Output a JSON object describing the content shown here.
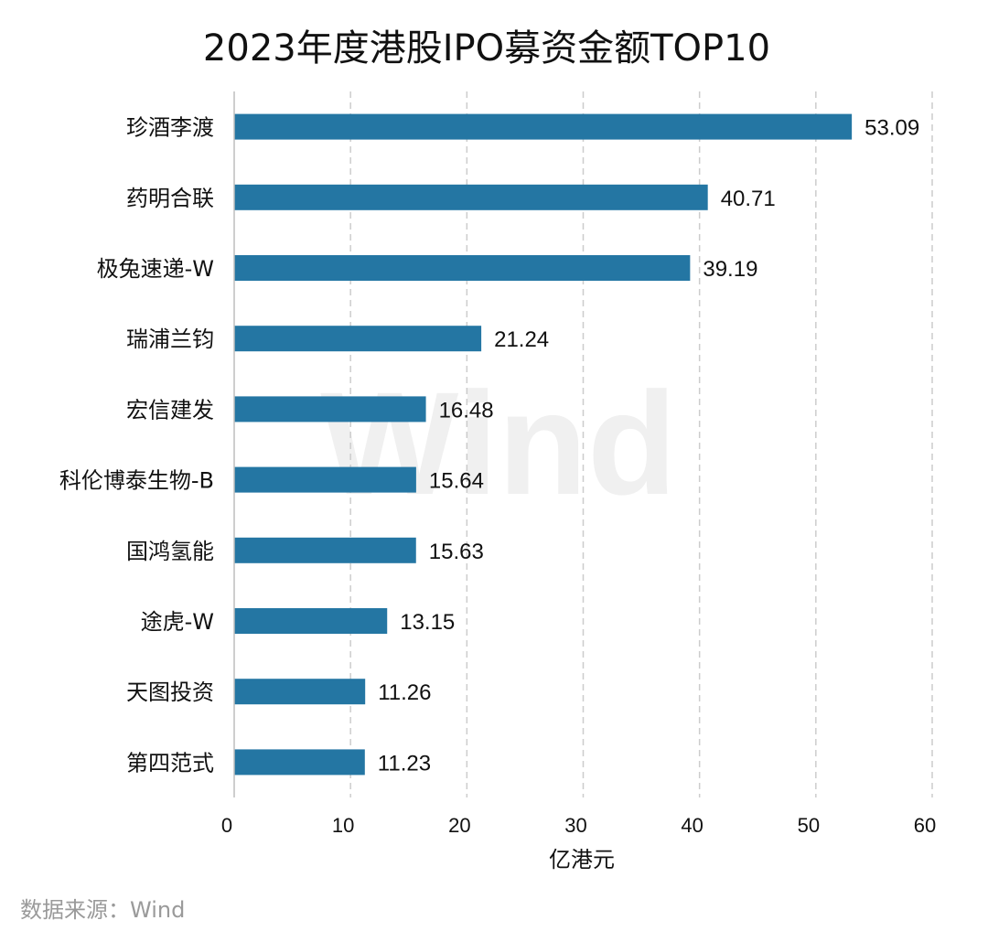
{
  "chart_data": {
    "type": "bar",
    "orientation": "horizontal",
    "title": "2023年度港股IPO募资金额TOP10",
    "categories": [
      "珍酒李渡",
      "药明合联",
      "极兔速递-W",
      "瑞浦兰钧",
      "宏信建发",
      "科伦博泰生物-B",
      "国鸿氢能",
      "途虎-W",
      "天图投资",
      "第四范式"
    ],
    "values": [
      53.09,
      40.71,
      39.19,
      21.24,
      16.48,
      15.64,
      15.63,
      13.15,
      11.26,
      11.23
    ],
    "value_labels": [
      "53.09",
      "40.71",
      "39.19",
      "21.24",
      "16.48",
      "15.64",
      "15.63",
      "13.15",
      "11.26",
      "11.23"
    ],
    "xlabel": "亿港元",
    "ylabel": "",
    "xlim": [
      0,
      60
    ],
    "xticks": [
      0,
      10,
      20,
      30,
      40,
      50,
      60
    ],
    "grid": "vertical dashed",
    "bar_color": "#2476a3",
    "grid_color": "#cccccc"
  },
  "source": "数据来源：Wind",
  "watermark": "Wind"
}
